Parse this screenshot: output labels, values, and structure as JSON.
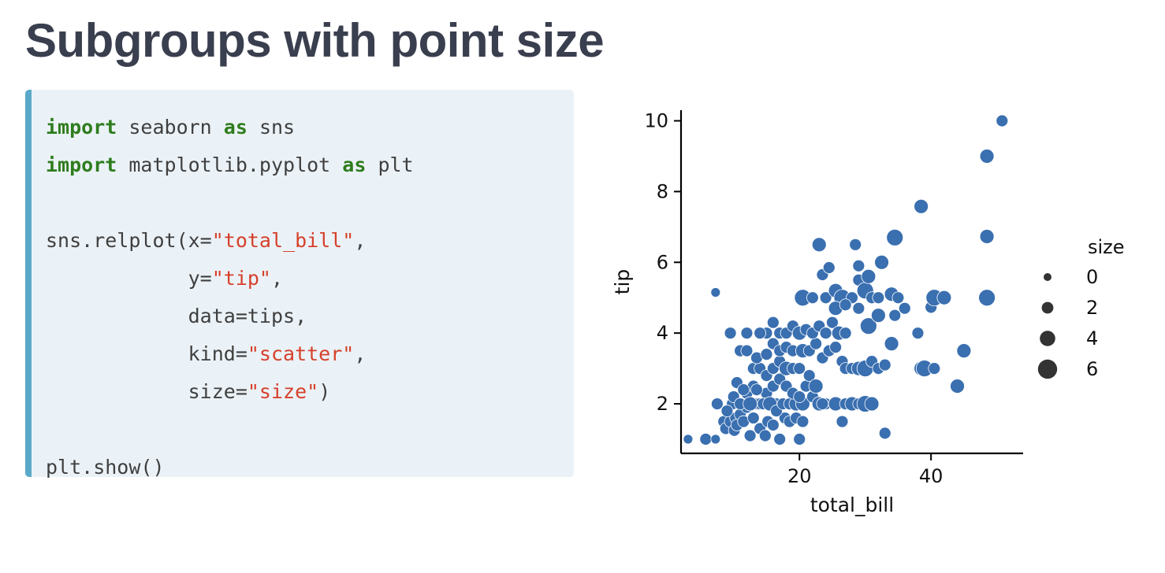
{
  "title": "Subgroups with point size",
  "code": {
    "lines": [
      [
        {
          "t": "import",
          "c": "kw"
        },
        {
          "t": " seaborn "
        },
        {
          "t": "as",
          "c": "kw"
        },
        {
          "t": " sns"
        }
      ],
      [
        {
          "t": "import",
          "c": "kw"
        },
        {
          "t": " matplotlib.pyplot "
        },
        {
          "t": "as",
          "c": "kw"
        },
        {
          "t": " plt"
        }
      ],
      [],
      [
        {
          "t": "sns.relplot(x="
        },
        {
          "t": "\"total_bill\"",
          "c": "str"
        },
        {
          "t": ","
        }
      ],
      [
        {
          "t": "            y="
        },
        {
          "t": "\"tip\"",
          "c": "str"
        },
        {
          "t": ","
        }
      ],
      [
        {
          "t": "            data=tips,"
        }
      ],
      [
        {
          "t": "            kind="
        },
        {
          "t": "\"scatter\"",
          "c": "str"
        },
        {
          "t": ","
        }
      ],
      [
        {
          "t": "            size="
        },
        {
          "t": "\"size\"",
          "c": "str"
        },
        {
          "t": ")"
        }
      ],
      [],
      [
        {
          "t": "plt.show()"
        }
      ]
    ]
  },
  "chart_data": {
    "type": "scatter",
    "xlabel": "total_bill",
    "ylabel": "tip",
    "xlim": [
      2,
      54
    ],
    "ylim": [
      0.6,
      10.3
    ],
    "xticks": [
      20,
      40
    ],
    "yticks": [
      2,
      4,
      6,
      8,
      10
    ],
    "grid": false,
    "legend": {
      "title": "size",
      "placement": "right",
      "entries": [
        "0",
        "2",
        "4",
        "6"
      ],
      "entry_sizes": [
        0,
        2,
        4,
        6
      ]
    },
    "color": "#3a6fb0",
    "points": [
      [
        3.07,
        1.0,
        1
      ],
      [
        5.75,
        1.0,
        2
      ],
      [
        7.25,
        1.0,
        1
      ],
      [
        7.25,
        5.15,
        1
      ],
      [
        7.5,
        2.0,
        2
      ],
      [
        8.5,
        1.5,
        2
      ],
      [
        8.8,
        1.3,
        2
      ],
      [
        9.5,
        1.5,
        2
      ],
      [
        9.8,
        2.0,
        2
      ],
      [
        10.1,
        1.25,
        2
      ],
      [
        10.3,
        1.6,
        2
      ],
      [
        10.5,
        1.4,
        2
      ],
      [
        11,
        1.7,
        2
      ],
      [
        11.5,
        1.5,
        2
      ],
      [
        12,
        1.9,
        2
      ],
      [
        12.5,
        1.1,
        2
      ],
      [
        13,
        1.6,
        2
      ],
      [
        13.5,
        2.0,
        2
      ],
      [
        14,
        1.3,
        2
      ],
      [
        14.8,
        1.1,
        2
      ],
      [
        15.2,
        1.5,
        2
      ],
      [
        16,
        1.4,
        2
      ],
      [
        17,
        1.0,
        2
      ],
      [
        17.8,
        1.6,
        2
      ],
      [
        18.5,
        1.5,
        2
      ],
      [
        16.5,
        2.0,
        2
      ],
      [
        19.5,
        1.6,
        2
      ],
      [
        9.0,
        1.8,
        2
      ],
      [
        10,
        2.2,
        2
      ],
      [
        11,
        2.0,
        2
      ],
      [
        12,
        2.3,
        2
      ],
      [
        13,
        2.5,
        2
      ],
      [
        14,
        2.0,
        2
      ],
      [
        15,
        2.3,
        2
      ],
      [
        16,
        2.5,
        2
      ],
      [
        10.5,
        2.6,
        2
      ],
      [
        11.5,
        2.4,
        2
      ],
      [
        12.5,
        2.0,
        3
      ],
      [
        13.5,
        2.4,
        2
      ],
      [
        14.5,
        2.0,
        2
      ],
      [
        15.5,
        2.0,
        3
      ],
      [
        16.5,
        1.8,
        2
      ],
      [
        17.5,
        2.0,
        2
      ],
      [
        18.5,
        2.0,
        2
      ],
      [
        19.5,
        2.0,
        3
      ],
      [
        20.5,
        2.0,
        3
      ],
      [
        21,
        2.5,
        2
      ],
      [
        22,
        2.2,
        2
      ],
      [
        23,
        2.0,
        3
      ],
      [
        24,
        2.0,
        2
      ],
      [
        17,
        2.7,
        2
      ],
      [
        18,
        2.5,
        2
      ],
      [
        19,
        2.3,
        2
      ],
      [
        20,
        2.2,
        2
      ],
      [
        21.5,
        2.8,
        2
      ],
      [
        22.5,
        2.5,
        3
      ],
      [
        23.5,
        2.0,
        2
      ],
      [
        13,
        3.0,
        2
      ],
      [
        14,
        3.0,
        2
      ],
      [
        15,
        2.8,
        2
      ],
      [
        16,
        3.0,
        2
      ],
      [
        17,
        3.2,
        2
      ],
      [
        18,
        3.0,
        3
      ],
      [
        19,
        3.0,
        2
      ],
      [
        20,
        3.0,
        2
      ],
      [
        11,
        3.5,
        2
      ],
      [
        12,
        3.5,
        2
      ],
      [
        13.5,
        3.3,
        2
      ],
      [
        15,
        3.4,
        2
      ],
      [
        16,
        3.7,
        2
      ],
      [
        17,
        3.5,
        2
      ],
      [
        18,
        3.6,
        2
      ],
      [
        19,
        3.5,
        2
      ],
      [
        20.5,
        3.5,
        3
      ],
      [
        21.5,
        3.5,
        2
      ],
      [
        22.5,
        3.7,
        2
      ],
      [
        23.5,
        3.3,
        2
      ],
      [
        24.5,
        3.5,
        2
      ],
      [
        25.5,
        3.6,
        2
      ],
      [
        26.5,
        3.2,
        2
      ],
      [
        15,
        4.0,
        2
      ],
      [
        16,
        4.3,
        2
      ],
      [
        17,
        4.0,
        2
      ],
      [
        18,
        4.0,
        2
      ],
      [
        19,
        4.2,
        2
      ],
      [
        20,
        4.0,
        3
      ],
      [
        21,
        4.1,
        2
      ],
      [
        22,
        4.0,
        2
      ],
      [
        23,
        4.2,
        2
      ],
      [
        24,
        4.0,
        2
      ],
      [
        25,
        4.3,
        2
      ],
      [
        26,
        4.0,
        3
      ],
      [
        27,
        4.0,
        2
      ],
      [
        9.5,
        4.0,
        2
      ],
      [
        12,
        4.0,
        2
      ],
      [
        14,
        4.0,
        2
      ],
      [
        20.5,
        5.0,
        4
      ],
      [
        22,
        5.0,
        2
      ],
      [
        24,
        5.0,
        2
      ],
      [
        25.5,
        5.2,
        3
      ],
      [
        26.5,
        5.0,
        4
      ],
      [
        28,
        5.0,
        2
      ],
      [
        29,
        5.5,
        2
      ],
      [
        30,
        5.2,
        4
      ],
      [
        31,
        5.0,
        2
      ],
      [
        32,
        5.0,
        2
      ],
      [
        34,
        5.1,
        3
      ],
      [
        35,
        5.0,
        2
      ],
      [
        36,
        4.7,
        2
      ],
      [
        25.5,
        4.7,
        3
      ],
      [
        27,
        4.8,
        2
      ],
      [
        29,
        4.7,
        2
      ],
      [
        23,
        6.5,
        3
      ],
      [
        23.5,
        5.65,
        2
      ],
      [
        24.5,
        5.85,
        2
      ],
      [
        28.5,
        6.5,
        2
      ],
      [
        29,
        5.9,
        2
      ],
      [
        30.5,
        5.6,
        3
      ],
      [
        32.5,
        6.0,
        3
      ],
      [
        34.5,
        6.7,
        4
      ],
      [
        38.5,
        7.58,
        3
      ],
      [
        48.5,
        9.0,
        3
      ],
      [
        48.5,
        6.73,
        3
      ],
      [
        50.8,
        10.0,
        2
      ],
      [
        40,
        4.73,
        2
      ],
      [
        40.5,
        5.0,
        4
      ],
      [
        42,
        5.0,
        3
      ],
      [
        48.5,
        5.0,
        4
      ],
      [
        34,
        3.7,
        3
      ],
      [
        38,
        4.0,
        2
      ],
      [
        38.5,
        3.0,
        3
      ],
      [
        39,
        3.0,
        4
      ],
      [
        40.5,
        3.0,
        2
      ],
      [
        45,
        3.5,
        3
      ],
      [
        44,
        2.5,
        3
      ],
      [
        27,
        3.0,
        2
      ],
      [
        28,
        3.0,
        2
      ],
      [
        29,
        3.0,
        3
      ],
      [
        30,
        3.0,
        4
      ],
      [
        31,
        3.2,
        2
      ],
      [
        32,
        3.0,
        2
      ],
      [
        33,
        3.1,
        2
      ],
      [
        25.5,
        2.0,
        3
      ],
      [
        27,
        2.0,
        2
      ],
      [
        28,
        2.0,
        3
      ],
      [
        29,
        2.0,
        2
      ],
      [
        30,
        2.0,
        4
      ],
      [
        31,
        2.0,
        3
      ],
      [
        26.5,
        1.5,
        2
      ],
      [
        33,
        1.17,
        2
      ],
      [
        20,
        1.0,
        2
      ],
      [
        20.5,
        1.5,
        2
      ],
      [
        30.5,
        4.2,
        4
      ],
      [
        32,
        4.5,
        3
      ],
      [
        34.5,
        4.5,
        2
      ]
    ]
  }
}
